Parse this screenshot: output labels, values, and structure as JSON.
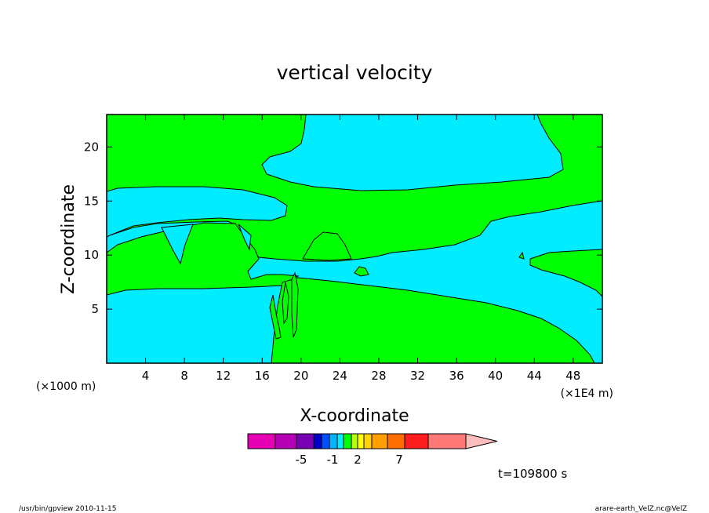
{
  "chart_data": {
    "type": "heatmap",
    "title": "vertical velocity",
    "xlabel": "X-coordinate",
    "ylabel": "Z-coordinate",
    "x_unit_left": "(×1000 m)",
    "x_unit_right": "(×1E4 m)",
    "xlim": [
      0,
      51
    ],
    "ylim": [
      0,
      23
    ],
    "x_ticks": [
      4,
      8,
      12,
      16,
      20,
      24,
      28,
      32,
      36,
      40,
      44,
      48
    ],
    "y_ticks": [
      5,
      10,
      15,
      20
    ],
    "grid": false,
    "colors": {
      "positive_region": "#00ff00",
      "near_zero_region": "#00ecff"
    },
    "colorbar": {
      "colors": [
        "#e600b4",
        "#b400b4",
        "#7800b4",
        "#0000c8",
        "#0050ff",
        "#00b4ff",
        "#00ecff",
        "#00ff00",
        "#b4ff00",
        "#ffff00",
        "#ffd200",
        "#ffa000",
        "#ff6e00",
        "#ff1e1e",
        "#ff7878",
        "#ffbebe"
      ],
      "tick_labels": [
        "-5",
        "-1",
        "2",
        "7"
      ]
    },
    "time_label": "t=109800 s",
    "footer_left": "/usr/bin/gpview  2010-11-15",
    "footer_right": "arare-earth_VelZ.nc@VelZ"
  }
}
